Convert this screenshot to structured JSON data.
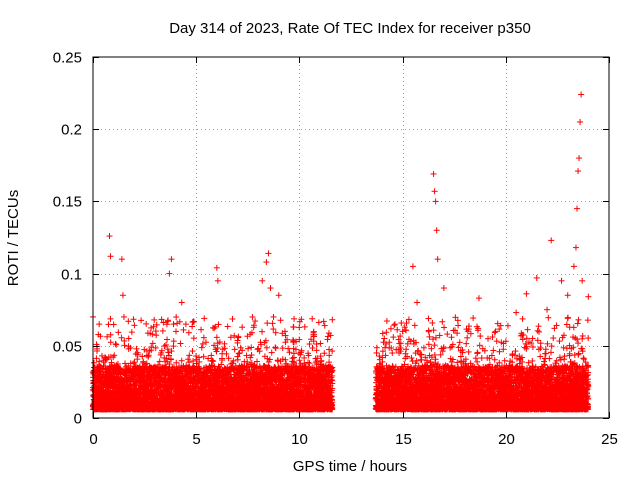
{
  "chart_data": {
    "type": "scatter",
    "title": "Day 314 of 2023, Rate Of TEC Index for receiver p350",
    "xlabel": "GPS time / hours",
    "ylabel": "ROTI / TECUs",
    "xlim": [
      0,
      25
    ],
    "ylim": [
      0,
      0.25
    ],
    "xticks": [
      0,
      5,
      10,
      15,
      20,
      25
    ],
    "xtick_labels": [
      "0",
      "5",
      "10",
      "15",
      "20",
      "25"
    ],
    "yticks": [
      0,
      0.05,
      0.1,
      0.15,
      0.2,
      0.25
    ],
    "ytick_labels": [
      "0",
      "0.05",
      "0.1",
      "0.15",
      "0.2",
      "0.25"
    ],
    "grid": true,
    "marker": "+",
    "color": "#ff0000",
    "data_gap_hours": [
      11.6,
      13.7
    ],
    "series": [
      {
        "name": "ROTI",
        "x": [
          0.0,
          0.05,
          0.3,
          0.5,
          0.8,
          0.85,
          1.4,
          1.45,
          1.5,
          3.7,
          3.8,
          3.9,
          4.3,
          4.5,
          6.0,
          6.05,
          7.0,
          7.1,
          8.2,
          8.4,
          8.5,
          8.6,
          9.0,
          9.3,
          10.0,
          11.5,
          13.8,
          14.5,
          15.0,
          15.5,
          15.7,
          16.5,
          16.55,
          16.6,
          16.65,
          16.7,
          17.0,
          18.7,
          19.5,
          20.5,
          21.0,
          21.5,
          22.0,
          22.2,
          22.7,
          23.0,
          23.3,
          23.4,
          23.45,
          23.5,
          23.55,
          23.6,
          23.65,
          23.7,
          24.0
        ],
        "y": [
          0.07,
          0.035,
          0.065,
          0.04,
          0.126,
          0.112,
          0.11,
          0.085,
          0.07,
          0.1,
          0.11,
          0.065,
          0.08,
          0.065,
          0.104,
          0.095,
          0.052,
          0.045,
          0.095,
          0.108,
          0.114,
          0.09,
          0.085,
          0.06,
          0.04,
          0.035,
          0.03,
          0.045,
          0.06,
          0.105,
          0.08,
          0.169,
          0.157,
          0.15,
          0.13,
          0.11,
          0.09,
          0.083,
          0.06,
          0.073,
          0.086,
          0.097,
          0.075,
          0.123,
          0.095,
          0.085,
          0.105,
          0.118,
          0.145,
          0.171,
          0.18,
          0.205,
          0.224,
          0.095,
          0.084
        ]
      }
    ]
  }
}
